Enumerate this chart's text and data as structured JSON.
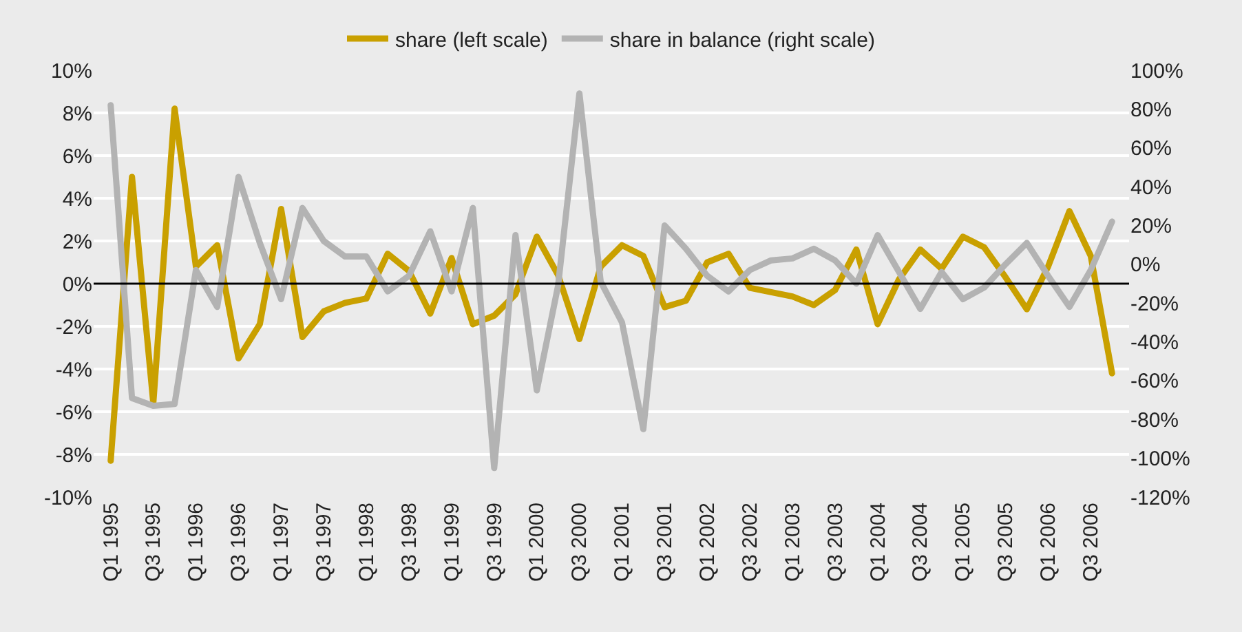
{
  "chart_data": {
    "type": "line",
    "categories": [
      "Q1 1995",
      null,
      "Q3 1995",
      null,
      "Q1 1996",
      null,
      "Q3 1996",
      null,
      "Q1 1997",
      null,
      "Q3 1997",
      null,
      "Q1 1998",
      null,
      "Q3 1998",
      null,
      "Q1 1999",
      null,
      "Q3 1999",
      null,
      "Q1 2000",
      null,
      "Q3 2000",
      null,
      "Q1 2001",
      null,
      "Q3 2001",
      null,
      "Q1 2002",
      null,
      "Q3 2002",
      null,
      "Q1 2003",
      null,
      "Q3 2003",
      null,
      "Q1 2004",
      null,
      "Q3 2004",
      null,
      "Q1 2005",
      null,
      "Q3 2005",
      null,
      "Q1 2006",
      null,
      "Q3 2006",
      null
    ],
    "series": [
      {
        "name": "share (left scale)",
        "color": "#c9a000",
        "values": [
          -8.3,
          5.0,
          -5.6,
          8.2,
          0.8,
          1.8,
          -3.5,
          -1.9,
          3.5,
          -2.5,
          -1.3,
          -0.9,
          -0.7,
          1.4,
          0.6,
          -1.4,
          1.2,
          -1.9,
          -1.5,
          -0.5,
          2.2,
          0.4,
          -2.6,
          0.8,
          1.8,
          1.3,
          -1.1,
          -0.8,
          1.0,
          1.4,
          -0.2,
          -0.4,
          -0.6,
          -1.0,
          -0.3,
          1.6,
          -1.9,
          0.2,
          1.6,
          0.7,
          2.2,
          1.7,
          0.3,
          -1.2,
          0.8,
          3.4,
          1.3,
          -4.2
        ]
      },
      {
        "name": "share in balance (right scale)",
        "color": "#b3b3b3",
        "axis": "y2",
        "values": [
          82,
          -69,
          -73,
          -72,
          -3,
          -22,
          45,
          11,
          -18,
          29,
          12,
          4,
          4,
          -14,
          -6,
          17,
          -14,
          29,
          -105,
          15,
          -65,
          -11,
          88,
          -9,
          -30,
          -85,
          20,
          8,
          -6,
          -14,
          -3,
          2,
          3,
          8,
          2,
          -10,
          15,
          -4,
          -23,
          -4,
          -18,
          -12,
          0,
          11,
          -6,
          -22,
          -3,
          22
        ]
      }
    ],
    "ylim": [
      -10,
      10
    ],
    "yticks": [
      {
        "value": -10,
        "label": "-10%"
      },
      {
        "value": -8,
        "label": "-8%"
      },
      {
        "value": -6,
        "label": "-6%"
      },
      {
        "value": -4,
        "label": "-4%"
      },
      {
        "value": -2,
        "label": "-2%"
      },
      {
        "value": 0,
        "label": "0%"
      },
      {
        "value": 2,
        "label": "2%"
      },
      {
        "value": 4,
        "label": "4%"
      },
      {
        "value": 6,
        "label": "6%"
      },
      {
        "value": 8,
        "label": "8%"
      },
      {
        "value": 10,
        "label": "10%"
      }
    ],
    "y2lim": [
      -120,
      100
    ],
    "y2ticks": [
      {
        "value": -120,
        "label": "-120%"
      },
      {
        "value": -100,
        "label": "-100%"
      },
      {
        "value": -80,
        "label": "-80%"
      },
      {
        "value": -60,
        "label": "-60%"
      },
      {
        "value": -40,
        "label": "-40%"
      },
      {
        "value": -20,
        "label": "-20%"
      },
      {
        "value": 0,
        "label": "0%"
      },
      {
        "value": 20,
        "label": "20%"
      },
      {
        "value": 40,
        "label": "40%"
      },
      {
        "value": 60,
        "label": "60%"
      },
      {
        "value": 80,
        "label": "80%"
      },
      {
        "value": 100,
        "label": "100%"
      }
    ],
    "ref_lines": [
      {
        "axis": "y",
        "value": 0,
        "color": "#000000"
      }
    ],
    "grid": "y",
    "legend": "top",
    "line_style": "solid",
    "marker": "none"
  }
}
